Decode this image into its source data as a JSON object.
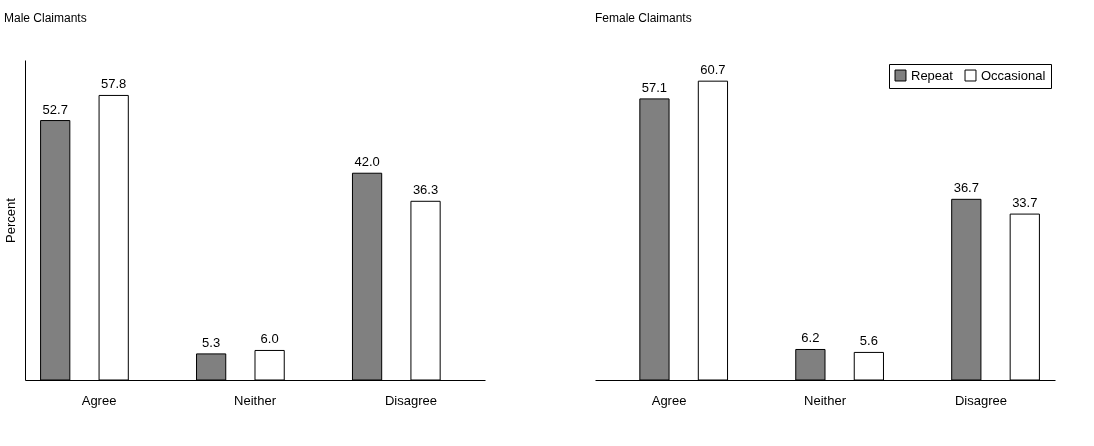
{
  "chart_data": [
    {
      "type": "bar",
      "title": "Male Claimants",
      "ylabel": "Percent",
      "categories": [
        "Agree",
        "Neither",
        "Disagree"
      ],
      "tick_labels": "x",
      "series": [
        {
          "color": "#808080",
          "values": [
            52.7,
            5.3,
            42.0
          ],
          "value_labels": [
            "52.7",
            "5.3",
            "42.0"
          ]
        },
        {
          "color": "#ffffff",
          "values": [
            57.8,
            6.0,
            36.3
          ],
          "value_labels": [
            "57.8",
            "6.0",
            "36.3"
          ]
        }
      ]
    },
    {
      "type": "bar",
      "title": "Female Claimants",
      "categories": [
        "Agree",
        "Neither",
        "Disagree"
      ],
      "tick_labels": "x",
      "legend": "top right",
      "series": [
        {
          "name": "Repeat",
          "color": "#808080",
          "values": [
            57.1,
            6.2,
            36.7
          ],
          "value_labels": [
            "57.1",
            "6.2",
            "36.7"
          ]
        },
        {
          "name": "Occasional",
          "color": "#ffffff",
          "values": [
            60.7,
            5.6,
            33.7
          ],
          "value_labels": [
            "60.7",
            "5.6",
            "33.7"
          ]
        }
      ]
    }
  ]
}
